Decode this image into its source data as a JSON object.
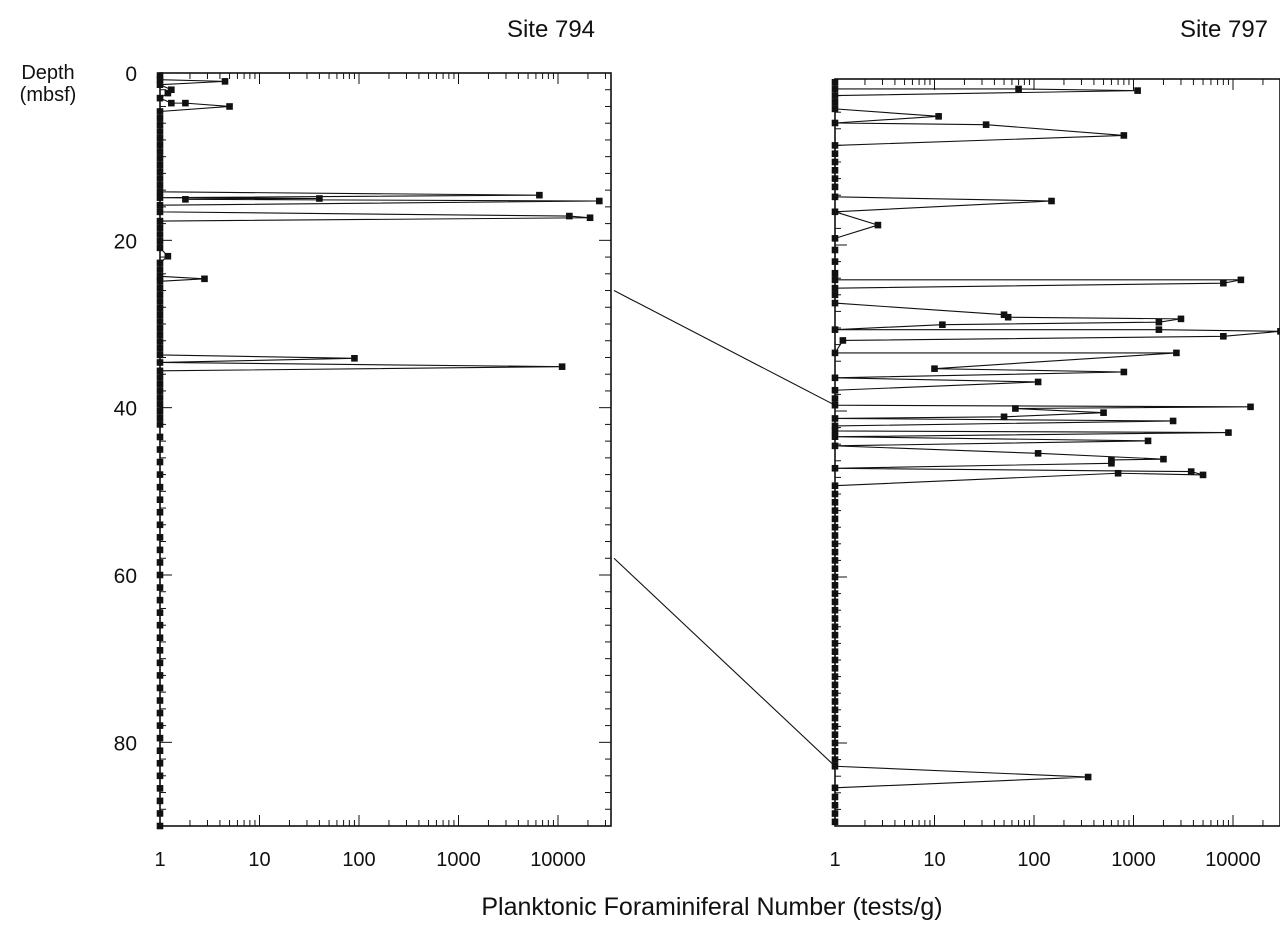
{
  "chart_data": [
    {
      "type": "line",
      "title": "Site 794",
      "ylabel": "Depth\n(mbsf)",
      "xlabel": "Planktonic Foraminiferal Number (tests/g)",
      "x_scale": "log",
      "xlim": [
        1,
        30000
      ],
      "ylim": [
        0,
        90
      ],
      "y_inverted": true,
      "x_ticks": [
        "1",
        "10",
        "100",
        "1000",
        "10000"
      ],
      "y_ticks": [
        "0",
        "20",
        "40",
        "60",
        "80"
      ],
      "points": [
        {
          "x": 1,
          "y": 0.3
        },
        {
          "x": 1,
          "y": 0.8
        },
        {
          "x": 4.5,
          "y": 1.0
        },
        {
          "x": 1,
          "y": 1.4
        },
        {
          "x": 1.3,
          "y": 2.0
        },
        {
          "x": 1.2,
          "y": 2.4
        },
        {
          "x": 1,
          "y": 3.0
        },
        {
          "x": 1.3,
          "y": 3.6
        },
        {
          "x": 1.8,
          "y": 3.6
        },
        {
          "x": 5,
          "y": 4.0
        },
        {
          "x": 1,
          "y": 4.6
        },
        {
          "x": 1,
          "y": 5.4
        },
        {
          "x": 1,
          "y": 6.2
        },
        {
          "x": 1,
          "y": 7.0
        },
        {
          "x": 1,
          "y": 7.8
        },
        {
          "x": 1,
          "y": 8.6
        },
        {
          "x": 1,
          "y": 9.4
        },
        {
          "x": 1,
          "y": 10.2
        },
        {
          "x": 1,
          "y": 11.0
        },
        {
          "x": 1,
          "y": 11.8
        },
        {
          "x": 1,
          "y": 12.6
        },
        {
          "x": 1,
          "y": 13.4
        },
        {
          "x": 1,
          "y": 14.2
        },
        {
          "x": 6500,
          "y": 14.6
        },
        {
          "x": 1,
          "y": 14.9
        },
        {
          "x": 40,
          "y": 15.0
        },
        {
          "x": 1.8,
          "y": 15.1
        },
        {
          "x": 26000,
          "y": 15.3
        },
        {
          "x": 1,
          "y": 15.8
        },
        {
          "x": 1,
          "y": 16.6
        },
        {
          "x": 13000,
          "y": 17.1
        },
        {
          "x": 21000,
          "y": 17.3
        },
        {
          "x": 1,
          "y": 17.7
        },
        {
          "x": 1,
          "y": 18.5
        },
        {
          "x": 1,
          "y": 19.3
        },
        {
          "x": 1,
          "y": 20.1
        },
        {
          "x": 1,
          "y": 20.9
        },
        {
          "x": 1.2,
          "y": 21.9
        },
        {
          "x": 1,
          "y": 22.7
        },
        {
          "x": 1,
          "y": 23.5
        },
        {
          "x": 1,
          "y": 24.3
        },
        {
          "x": 2.8,
          "y": 24.6
        },
        {
          "x": 1,
          "y": 24.9
        },
        {
          "x": 1,
          "y": 25.7
        },
        {
          "x": 1,
          "y": 26.5
        },
        {
          "x": 1,
          "y": 27.3
        },
        {
          "x": 1,
          "y": 28.1
        },
        {
          "x": 1,
          "y": 28.9
        },
        {
          "x": 1,
          "y": 29.7
        },
        {
          "x": 1,
          "y": 30.5
        },
        {
          "x": 1,
          "y": 31.3
        },
        {
          "x": 1,
          "y": 32.1
        },
        {
          "x": 1,
          "y": 32.9
        },
        {
          "x": 1,
          "y": 33.7
        },
        {
          "x": 90,
          "y": 34.1
        },
        {
          "x": 1,
          "y": 34.6
        },
        {
          "x": 11000,
          "y": 35.1
        },
        {
          "x": 1,
          "y": 35.6
        },
        {
          "x": 1,
          "y": 36.4
        },
        {
          "x": 1,
          "y": 37.2
        },
        {
          "x": 1,
          "y": 38.0
        },
        {
          "x": 1,
          "y": 38.8
        },
        {
          "x": 1,
          "y": 39.6
        },
        {
          "x": 1,
          "y": 40.4
        },
        {
          "x": 1,
          "y": 41.2
        },
        {
          "x": 1,
          "y": 42.0
        },
        {
          "x": 1,
          "y": 43.5
        },
        {
          "x": 1,
          "y": 45.0
        },
        {
          "x": 1,
          "y": 46.5
        },
        {
          "x": 1,
          "y": 48.0
        },
        {
          "x": 1,
          "y": 49.5
        },
        {
          "x": 1,
          "y": 51.0
        },
        {
          "x": 1,
          "y": 52.5
        },
        {
          "x": 1,
          "y": 54.0
        },
        {
          "x": 1,
          "y": 55.5
        },
        {
          "x": 1,
          "y": 57.0
        },
        {
          "x": 1,
          "y": 58.5
        },
        {
          "x": 1,
          "y": 60.0
        },
        {
          "x": 1,
          "y": 61.5
        },
        {
          "x": 1,
          "y": 63.0
        },
        {
          "x": 1,
          "y": 64.5
        },
        {
          "x": 1,
          "y": 66.0
        },
        {
          "x": 1,
          "y": 67.5
        },
        {
          "x": 1,
          "y": 69.0
        },
        {
          "x": 1,
          "y": 70.5
        },
        {
          "x": 1,
          "y": 72.0
        },
        {
          "x": 1,
          "y": 73.5
        },
        {
          "x": 1,
          "y": 75.0
        },
        {
          "x": 1,
          "y": 76.5
        },
        {
          "x": 1,
          "y": 78.0
        },
        {
          "x": 1,
          "y": 79.5
        },
        {
          "x": 1,
          "y": 81.0
        },
        {
          "x": 1,
          "y": 82.5
        },
        {
          "x": 1,
          "y": 84.0
        },
        {
          "x": 1,
          "y": 85.5
        },
        {
          "x": 1,
          "y": 87.0
        },
        {
          "x": 1,
          "y": 88.5
        },
        {
          "x": 1,
          "y": 90.0
        }
      ]
    },
    {
      "type": "line",
      "title": "Site 797",
      "x_scale": "log",
      "xlim": [
        1,
        30000
      ],
      "ylim": [
        0,
        90
      ],
      "y_inverted": true,
      "x_ticks": [
        "1",
        "10",
        "100",
        "1000",
        "10000"
      ],
      "points": [
        {
          "x": 1,
          "y": 0.4
        },
        {
          "x": 1,
          "y": 1.2
        },
        {
          "x": 70,
          "y": 1.2
        },
        {
          "x": 1100,
          "y": 1.4
        },
        {
          "x": 1,
          "y": 2.0
        },
        {
          "x": 1,
          "y": 2.8
        },
        {
          "x": 1,
          "y": 3.6
        },
        {
          "x": 11,
          "y": 4.5
        },
        {
          "x": 1,
          "y": 5.3
        },
        {
          "x": 33,
          "y": 5.5
        },
        {
          "x": 800,
          "y": 6.8
        },
        {
          "x": 1,
          "y": 8.0
        },
        {
          "x": 1,
          "y": 9.0
        },
        {
          "x": 1,
          "y": 10.0
        },
        {
          "x": 1,
          "y": 11.0
        },
        {
          "x": 1,
          "y": 12.0
        },
        {
          "x": 1,
          "y": 13.0
        },
        {
          "x": 1,
          "y": 14.2
        },
        {
          "x": 150,
          "y": 14.7
        },
        {
          "x": 1,
          "y": 16.0
        },
        {
          "x": 2.7,
          "y": 17.6
        },
        {
          "x": 1,
          "y": 19.2
        },
        {
          "x": 1,
          "y": 20.6
        },
        {
          "x": 1,
          "y": 22.0
        },
        {
          "x": 1,
          "y": 23.4
        },
        {
          "x": 1,
          "y": 24.2
        },
        {
          "x": 12000,
          "y": 24.2
        },
        {
          "x": 8000,
          "y": 24.6
        },
        {
          "x": 1,
          "y": 25.2
        },
        {
          "x": 1,
          "y": 26.0
        },
        {
          "x": 1,
          "y": 27.0
        },
        {
          "x": 50,
          "y": 28.4
        },
        {
          "x": 55,
          "y": 28.7
        },
        {
          "x": 3000,
          "y": 28.9
        },
        {
          "x": 1800,
          "y": 29.3
        },
        {
          "x": 12,
          "y": 29.6
        },
        {
          "x": 1,
          "y": 30.2
        },
        {
          "x": 1800,
          "y": 30.2
        },
        {
          "x": 30000,
          "y": 30.4
        },
        {
          "x": 8000,
          "y": 31.0
        },
        {
          "x": 1.2,
          "y": 31.5
        },
        {
          "x": 1,
          "y": 33.0
        },
        {
          "x": 2700,
          "y": 33.0
        },
        {
          "x": 10,
          "y": 34.9
        },
        {
          "x": 800,
          "y": 35.3
        },
        {
          "x": 1,
          "y": 36.0
        },
        {
          "x": 110,
          "y": 36.5
        },
        {
          "x": 1,
          "y": 37.5
        },
        {
          "x": 1,
          "y": 38.5
        },
        {
          "x": 1,
          "y": 39.3
        },
        {
          "x": 15000,
          "y": 39.5
        },
        {
          "x": 65,
          "y": 39.7
        },
        {
          "x": 500,
          "y": 40.2
        },
        {
          "x": 50,
          "y": 40.7
        },
        {
          "x": 1,
          "y": 40.9
        },
        {
          "x": 2500,
          "y": 41.2
        },
        {
          "x": 1,
          "y": 41.8
        },
        {
          "x": 1,
          "y": 42.4
        },
        {
          "x": 9000,
          "y": 42.6
        },
        {
          "x": 1,
          "y": 43.1
        },
        {
          "x": 1400,
          "y": 43.6
        },
        {
          "x": 1,
          "y": 44.2
        },
        {
          "x": 110,
          "y": 45.1
        },
        {
          "x": 2000,
          "y": 45.8
        },
        {
          "x": 600,
          "y": 45.9
        },
        {
          "x": 600,
          "y": 46.3
        },
        {
          "x": 1,
          "y": 46.9
        },
        {
          "x": 3800,
          "y": 47.3
        },
        {
          "x": 5000,
          "y": 47.7
        },
        {
          "x": 700,
          "y": 47.5
        },
        {
          "x": 1,
          "y": 49.0
        },
        {
          "x": 1,
          "y": 50.0
        },
        {
          "x": 1,
          "y": 51.0
        },
        {
          "x": 1,
          "y": 52.0
        },
        {
          "x": 1,
          "y": 53.0
        },
        {
          "x": 1,
          "y": 54.0
        },
        {
          "x": 1,
          "y": 55.0
        },
        {
          "x": 1,
          "y": 56.0
        },
        {
          "x": 1,
          "y": 57.0
        },
        {
          "x": 1,
          "y": 58.0
        },
        {
          "x": 1,
          "y": 59.0
        },
        {
          "x": 1,
          "y": 60.0
        },
        {
          "x": 1,
          "y": 61.0
        },
        {
          "x": 1,
          "y": 62.0
        },
        {
          "x": 1,
          "y": 63.0
        },
        {
          "x": 1,
          "y": 64.0
        },
        {
          "x": 1,
          "y": 65.0
        },
        {
          "x": 1,
          "y": 66.0
        },
        {
          "x": 1,
          "y": 67.0
        },
        {
          "x": 1,
          "y": 68.0
        },
        {
          "x": 1,
          "y": 69.0
        },
        {
          "x": 1,
          "y": 70.0
        },
        {
          "x": 1,
          "y": 71.0
        },
        {
          "x": 1,
          "y": 72.0
        },
        {
          "x": 1,
          "y": 73.0
        },
        {
          "x": 1,
          "y": 74.0
        },
        {
          "x": 1,
          "y": 75.0
        },
        {
          "x": 1,
          "y": 76.0
        },
        {
          "x": 1,
          "y": 77.0
        },
        {
          "x": 1,
          "y": 78.0
        },
        {
          "x": 1,
          "y": 79.0
        },
        {
          "x": 1,
          "y": 80.0
        },
        {
          "x": 1,
          "y": 81.0
        },
        {
          "x": 1,
          "y": 82.0
        },
        {
          "x": 1,
          "y": 82.8
        },
        {
          "x": 350,
          "y": 84.1
        },
        {
          "x": 1,
          "y": 85.4
        },
        {
          "x": 1,
          "y": 86.5
        },
        {
          "x": 1,
          "y": 87.5
        },
        {
          "x": 1,
          "y": 88.5
        },
        {
          "x": 1,
          "y": 89.5
        }
      ]
    }
  ],
  "correlation_lines": [
    {
      "from_depth_site_794": 26,
      "to_depth_site_797": 39.3
    },
    {
      "from_depth_site_794": 58,
      "to_depth_site_797": 82.8
    }
  ]
}
